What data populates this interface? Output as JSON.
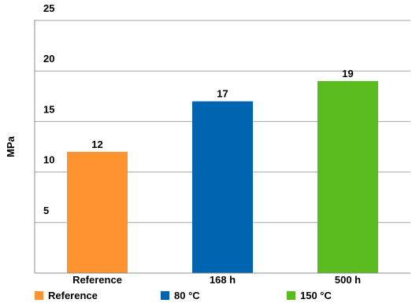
{
  "chart_data": {
    "type": "bar",
    "categories": [
      "Reference",
      "168 h",
      "500 h"
    ],
    "values": [
      12,
      17,
      19
    ],
    "data_labels": [
      "12",
      "17",
      "19"
    ],
    "colors": [
      "#ff9330",
      "#0064b0",
      "#59bb1e"
    ],
    "ylabel": "MPa",
    "xlabel": "",
    "ylim": [
      0,
      25
    ],
    "yticks": [
      5,
      10,
      15,
      20,
      25
    ],
    "ytick_labels": [
      "5",
      "10",
      "15",
      "20",
      "25"
    ],
    "grid": true,
    "legend_position": "bottom",
    "legend": [
      {
        "label": "Reference",
        "color": "#ff9330"
      },
      {
        "label": "80 °C",
        "color": "#0064b0"
      },
      {
        "label": "150 °C",
        "color": "#59bb1e"
      }
    ]
  }
}
